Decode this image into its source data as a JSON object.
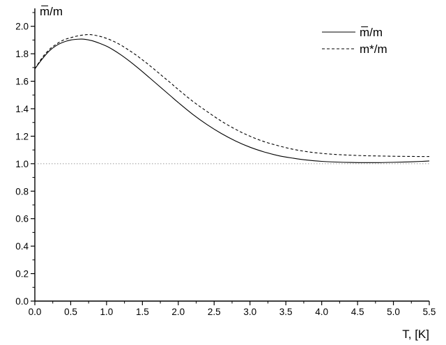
{
  "chart_data": {
    "type": "line",
    "title": "",
    "xlabel": "T, [K]",
    "ylabel": "m̅/m",
    "xlim": [
      0.0,
      5.5
    ],
    "ylim": [
      0.0,
      2.1
    ],
    "xticks": [
      "0.0",
      "0.5",
      "1.0",
      "1.5",
      "2.0",
      "2.5",
      "3.0",
      "3.5",
      "4.0",
      "4.5",
      "5.0",
      "5.5"
    ],
    "yticks": [
      "0.0",
      "0.2",
      "0.4",
      "0.6",
      "0.8",
      "1.0",
      "1.2",
      "1.4",
      "1.6",
      "1.8",
      "2.0"
    ],
    "grid": false,
    "legend_position": "top-right",
    "series": [
      {
        "name": "m̅/m",
        "style": "solid",
        "color": "#000000",
        "x": [
          0.0,
          0.1,
          0.2,
          0.3,
          0.4,
          0.5,
          0.6,
          0.65,
          0.7,
          0.8,
          0.9,
          1.0,
          1.1,
          1.2,
          1.3,
          1.4,
          1.5,
          1.6,
          1.7,
          1.8,
          1.9,
          2.0,
          2.2,
          2.4,
          2.6,
          2.8,
          3.0,
          3.2,
          3.4,
          3.6,
          3.8,
          4.0,
          4.2,
          4.4,
          4.6,
          4.8,
          5.0,
          5.2,
          5.4,
          5.5
        ],
        "y": [
          1.69,
          1.76,
          1.82,
          1.86,
          1.885,
          1.9,
          1.906,
          1.907,
          1.905,
          1.895,
          1.877,
          1.855,
          1.826,
          1.792,
          1.754,
          1.713,
          1.67,
          1.625,
          1.58,
          1.535,
          1.49,
          1.445,
          1.36,
          1.285,
          1.22,
          1.165,
          1.12,
          1.085,
          1.058,
          1.04,
          1.026,
          1.017,
          1.012,
          1.009,
          1.008,
          1.008,
          1.01,
          1.013,
          1.017,
          1.02
        ]
      },
      {
        "name": "m*/m",
        "style": "dashed",
        "color": "#000000",
        "x": [
          0.0,
          0.1,
          0.2,
          0.3,
          0.4,
          0.5,
          0.6,
          0.7,
          0.75,
          0.8,
          0.9,
          1.0,
          1.1,
          1.2,
          1.3,
          1.4,
          1.5,
          1.6,
          1.7,
          1.8,
          1.9,
          2.0,
          2.2,
          2.4,
          2.6,
          2.8,
          3.0,
          3.2,
          3.4,
          3.6,
          3.8,
          4.0,
          4.2,
          4.4,
          4.6,
          4.8,
          5.0,
          5.2,
          5.4,
          5.5
        ],
        "y": [
          1.69,
          1.77,
          1.83,
          1.87,
          1.9,
          1.917,
          1.93,
          1.938,
          1.94,
          1.938,
          1.928,
          1.912,
          1.89,
          1.863,
          1.83,
          1.795,
          1.756,
          1.715,
          1.672,
          1.628,
          1.585,
          1.54,
          1.455,
          1.38,
          1.31,
          1.25,
          1.2,
          1.16,
          1.13,
          1.105,
          1.087,
          1.075,
          1.067,
          1.062,
          1.058,
          1.056,
          1.054,
          1.053,
          1.052,
          1.052
        ]
      },
      {
        "name": "",
        "style": "dotted",
        "color": "#999999",
        "x": [
          0.0,
          5.5
        ],
        "y": [
          1.0,
          1.0
        ]
      }
    ]
  }
}
